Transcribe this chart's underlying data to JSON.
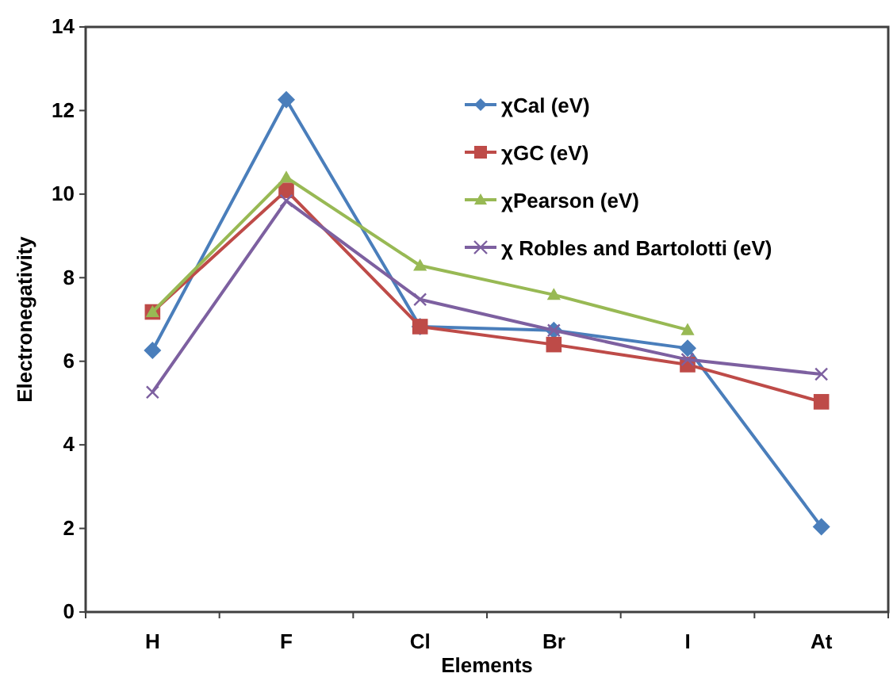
{
  "chart_data": {
    "type": "line",
    "xlabel": "Elements",
    "ylabel": "Electronegativity",
    "categories": [
      "H",
      "F",
      "Cl",
      "Br",
      "I",
      "At"
    ],
    "ylim": [
      0,
      14
    ],
    "yticks": [
      0,
      2,
      4,
      6,
      8,
      10,
      12,
      14
    ],
    "grid": false,
    "legend": "top right",
    "series": [
      {
        "name": "χCal (eV)",
        "color": "#4a7ebb",
        "marker": "diamond",
        "values": [
          6.26,
          12.26,
          6.83,
          6.74,
          6.31,
          2.04
        ]
      },
      {
        "name": "χGC (eV)",
        "color": "#be4b48",
        "marker": "square",
        "values": [
          7.18,
          10.09,
          6.83,
          6.4,
          5.92,
          5.03
        ]
      },
      {
        "name": "χPearson (eV)",
        "color": "#98b954",
        "marker": "triangle",
        "values": [
          7.18,
          10.4,
          8.29,
          7.59,
          6.75,
          null
        ]
      },
      {
        "name": "χ Robles and Bartolotti (eV)",
        "color": "#7d60a0",
        "marker": "cross",
        "values": [
          5.26,
          9.84,
          7.48,
          6.74,
          6.04,
          5.69
        ]
      }
    ]
  }
}
